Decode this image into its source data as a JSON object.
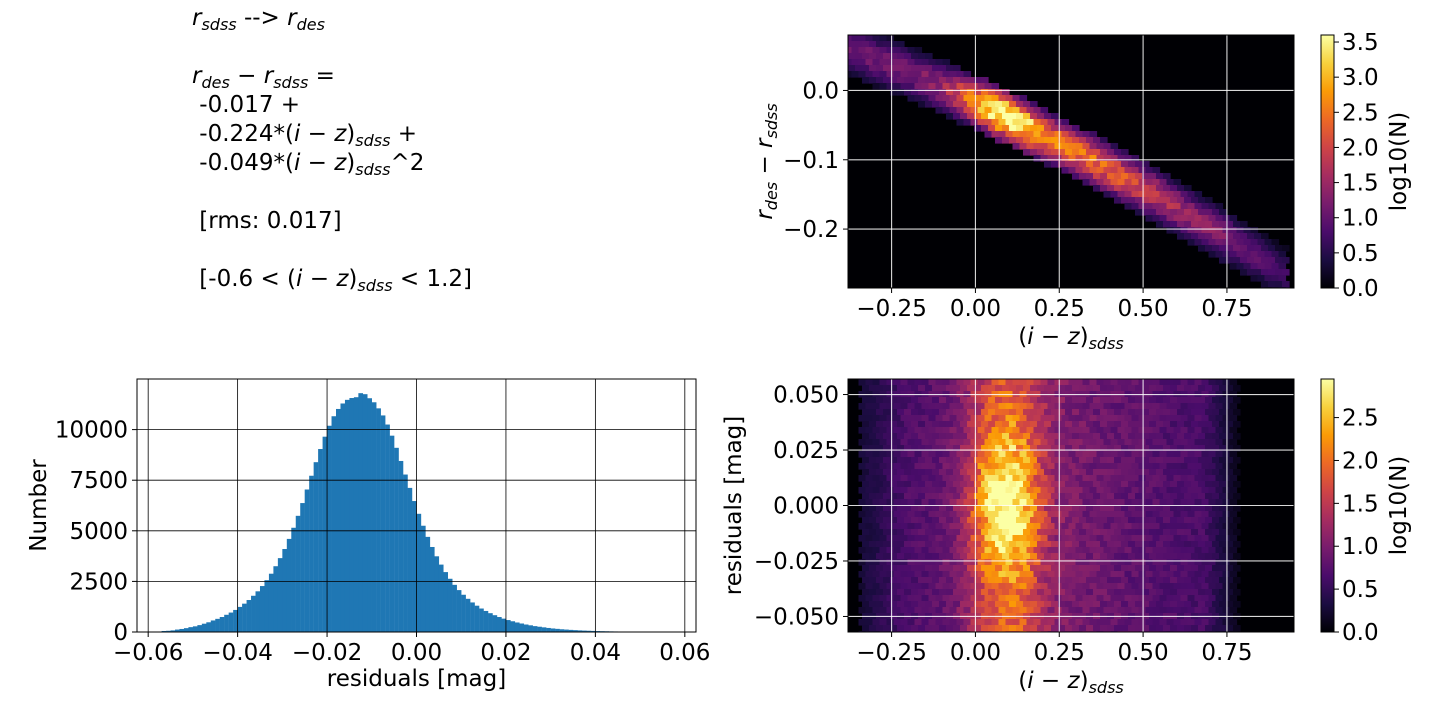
{
  "fit_text": {
    "mapping": {
      "from_var": "r",
      "from_sub": "sdss",
      "arrow": " --> ",
      "to_var": "r",
      "to_sub": "des"
    },
    "diff_label": {
      "a_var": "r",
      "a_sub": "des",
      "op": " − ",
      "b_var": "r",
      "b_sub": "sdss",
      "eq": " ="
    },
    "intercept": " -0.017 +",
    "term1": {
      "coef": " -0.224*(",
      "expr": "i − z",
      "close": ")",
      "sub": "sdss",
      "tail": " +"
    },
    "term2": {
      "coef": " -0.049*(",
      "expr": "i − z",
      "close": ")",
      "sub": "sdss",
      "tail": "^2"
    },
    "rms": " [rms: 0.017]",
    "range": {
      "open": " [-0.6 < (",
      "expr": "i − z",
      "close": ")",
      "sub": "sdss",
      "tail": " < 1.2]"
    }
  },
  "colormap": [
    "#000004",
    "#1b0c41",
    "#4a0c6b",
    "#781c6d",
    "#a52c60",
    "#cf4446",
    "#ed6925",
    "#fb9b06",
    "#f7d13d",
    "#fcffa4"
  ],
  "bar_color": "#1f77b4",
  "chart_data": [
    {
      "id": "residual-histogram",
      "type": "bar",
      "title": "",
      "xlabel": "residuals [mag]",
      "ylabel": "Number",
      "xlim": [
        -0.0625,
        0.0625
      ],
      "ylim": [
        0,
        12500
      ],
      "xticks": [
        -0.06,
        -0.04,
        -0.02,
        0.0,
        0.02,
        0.04,
        0.06
      ],
      "xtick_labels": [
        "−0.06",
        "−0.04",
        "−0.02",
        "0.00",
        "0.02",
        "0.04",
        "0.06"
      ],
      "yticks": [
        0,
        2500,
        5000,
        7500,
        10000
      ],
      "ytick_labels": [
        "0",
        "2500",
        "5000",
        "7500",
        "10000"
      ],
      "grid": true,
      "bin_range": [
        -0.057,
        0.057
      ],
      "bin_width": 0.001,
      "values": [
        50,
        60,
        80,
        120,
        150,
        190,
        240,
        280,
        340,
        410,
        480,
        570,
        650,
        740,
        850,
        960,
        1090,
        1240,
        1400,
        1580,
        1790,
        2010,
        2270,
        2560,
        2880,
        3250,
        3650,
        4100,
        4600,
        5150,
        5740,
        6370,
        7040,
        7720,
        8390,
        9040,
        9650,
        10190,
        10660,
        11020,
        11290,
        11470,
        11560,
        11600,
        11800,
        11750,
        11550,
        11350,
        11050,
        10700,
        10250,
        9700,
        9100,
        8450,
        7780,
        7120,
        6470,
        5840,
        5250,
        4700,
        4200,
        3740,
        3330,
        2960,
        2630,
        2330,
        2070,
        1840,
        1640,
        1460,
        1300,
        1160,
        1040,
        930,
        830,
        740,
        660,
        590,
        530,
        470,
        420,
        370,
        330,
        290,
        260,
        230,
        200,
        175,
        155,
        135,
        120,
        105,
        92,
        80,
        70,
        62,
        54,
        47,
        41,
        36,
        31,
        27,
        23,
        20,
        17,
        15,
        13,
        11,
        9,
        8,
        7,
        6,
        5,
        4
      ]
    },
    {
      "id": "color-term-hexbin",
      "type": "heatmap",
      "title": "",
      "xlabel": "(i − z)sdss",
      "xlabel_parts": {
        "open": "(",
        "expr": "i − z",
        "close": ")",
        "sub": "sdss"
      },
      "ylabel": "rdes − rsdss",
      "ylabel_parts": {
        "a_var": "r",
        "a_sub": "des",
        "op": " − ",
        "b_var": "r",
        "b_sub": "sdss"
      },
      "xlim": [
        -0.38,
        0.95
      ],
      "ylim": [
        -0.285,
        0.08
      ],
      "xticks": [
        -0.25,
        0.0,
        0.25,
        0.5,
        0.75
      ],
      "xtick_labels": [
        "−0.25",
        "0.00",
        "0.25",
        "0.50",
        "0.75"
      ],
      "yticks": [
        -0.2,
        -0.1,
        0.0
      ],
      "ytick_labels": [
        "−0.2",
        "−0.1",
        "0.0"
      ],
      "grid": true,
      "colorbar_label": "log10(N)",
      "colorbar_range": [
        0,
        3.6
      ],
      "colorbar_ticks": [
        "0.0",
        "0.5",
        "1.0",
        "1.5",
        "2.0",
        "2.5",
        "3.0",
        "3.5"
      ],
      "density_peak": {
        "x": 0.08,
        "y": -0.035,
        "log10N": 3.5
      },
      "density_ridge": {
        "intercept": -0.017,
        "c1": -0.224,
        "c2": -0.049
      }
    },
    {
      "id": "residual-hexbin",
      "type": "heatmap",
      "title": "",
      "xlabel": "(i − z)sdss",
      "xlabel_parts": {
        "open": "(",
        "expr": "i − z",
        "close": ")",
        "sub": "sdss"
      },
      "ylabel": "residuals [mag]",
      "xlim": [
        -0.38,
        0.95
      ],
      "ylim": [
        -0.057,
        0.057
      ],
      "xticks": [
        -0.25,
        0.0,
        0.25,
        0.5,
        0.75
      ],
      "xtick_labels": [
        "−0.25",
        "0.00",
        "0.25",
        "0.50",
        "0.75"
      ],
      "yticks": [
        -0.05,
        -0.025,
        0.0,
        0.025,
        0.05
      ],
      "ytick_labels": [
        "−0.050",
        "−0.025",
        "0.000",
        "0.025",
        "0.050"
      ],
      "grid": true,
      "colorbar_label": "log10(N)",
      "colorbar_range": [
        0,
        2.95
      ],
      "colorbar_ticks": [
        "0.0",
        "0.5",
        "1.0",
        "1.5",
        "2.0",
        "2.5"
      ],
      "density_peak": {
        "x": 0.09,
        "y": 0.0,
        "log10N": 2.9
      }
    }
  ]
}
